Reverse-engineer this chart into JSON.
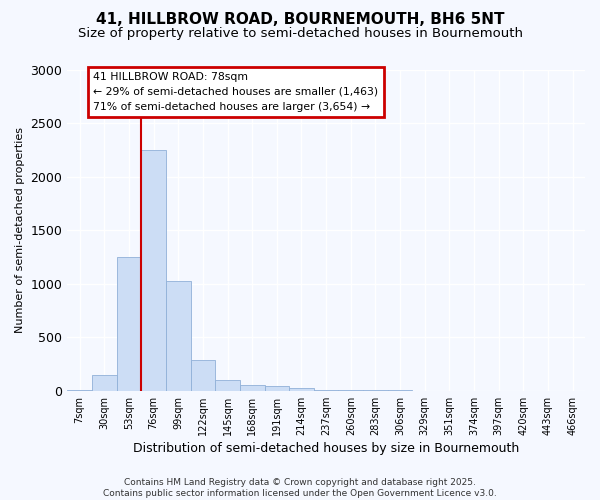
{
  "title1": "41, HILLBROW ROAD, BOURNEMOUTH, BH6 5NT",
  "title2": "Size of property relative to semi-detached houses in Bournemouth",
  "xlabel": "Distribution of semi-detached houses by size in Bournemouth",
  "ylabel": "Number of semi-detached properties",
  "bins": [
    "7sqm",
    "30sqm",
    "53sqm",
    "76sqm",
    "99sqm",
    "122sqm",
    "145sqm",
    "168sqm",
    "191sqm",
    "214sqm",
    "237sqm",
    "260sqm",
    "283sqm",
    "306sqm",
    "329sqm",
    "351sqm",
    "374sqm",
    "397sqm",
    "420sqm",
    "443sqm",
    "466sqm"
  ],
  "values": [
    5,
    150,
    1250,
    2250,
    1030,
    290,
    105,
    50,
    45,
    30,
    5,
    5,
    3,
    3,
    0,
    0,
    0,
    0,
    0,
    0,
    0
  ],
  "bar_color": "#ccddf5",
  "bar_edge_color": "#90b0d8",
  "red_line_color": "#cc0000",
  "annotation_line1": "41 HILLBROW ROAD: 78sqm",
  "annotation_line2": "← 29% of semi-detached houses are smaller (1,463)",
  "annotation_line3": "71% of semi-detached houses are larger (3,654) →",
  "annotation_box_color": "#ffffff",
  "annotation_box_edge": "#cc0000",
  "ylim": [
    0,
    3000
  ],
  "yticks": [
    0,
    500,
    1000,
    1500,
    2000,
    2500,
    3000
  ],
  "footer": "Contains HM Land Registry data © Crown copyright and database right 2025.\nContains public sector information licensed under the Open Government Licence v3.0.",
  "background_color": "#f5f8ff",
  "grid_color": "#ffffff",
  "title_fontsize": 11,
  "subtitle_fontsize": 9.5,
  "tick_fontsize": 7,
  "ylabel_fontsize": 8,
  "xlabel_fontsize": 9
}
